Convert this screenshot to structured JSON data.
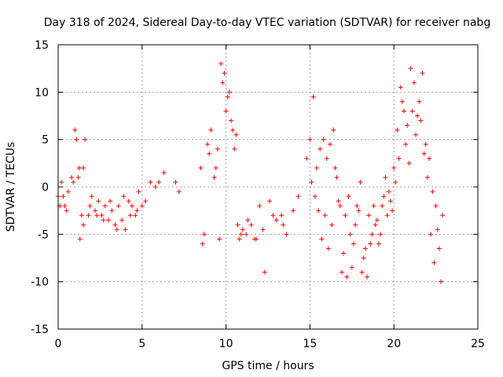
{
  "chart_data": {
    "type": "scatter",
    "title": "Day 318 of 2024, Sidereal Day-to-day VTEC variation (SDTVAR) for receiver nabg",
    "xlabel": "GPS time / hours",
    "ylabel": "SDTVAR / TECUs",
    "xlim": [
      0,
      25
    ],
    "ylim": [
      -15,
      15
    ],
    "xticks": [
      0,
      5,
      10,
      15,
      20,
      25
    ],
    "yticks": [
      -15,
      -10,
      -5,
      0,
      5,
      10,
      15
    ],
    "xtick_labels": [
      "0",
      "5",
      "10",
      "15",
      "20",
      "25"
    ],
    "ytick_labels": [
      "-15",
      "-10",
      "-5",
      "0",
      "5",
      "10",
      "15"
    ],
    "grid": true,
    "marker": "+",
    "marker_color": "#ff0000",
    "series": [
      {
        "name": "SDTVAR",
        "x": [
          0.0,
          0.2,
          0.4,
          0.6,
          0.8,
          1.0,
          1.1,
          1.2,
          1.3,
          1.4,
          1.5,
          1.6,
          1.8,
          2.0,
          2.2,
          2.4,
          2.6,
          2.8,
          3.0,
          3.2,
          3.4,
          3.6,
          3.8,
          4.0,
          4.2,
          4.4,
          4.6,
          4.8,
          5.0,
          5.2,
          5.5,
          5.8,
          6.0,
          6.3,
          7.0,
          7.2,
          8.5,
          8.7,
          8.9,
          9.1,
          9.3,
          9.5,
          9.7,
          9.8,
          10.0,
          10.2,
          10.4,
          10.6,
          10.8,
          11.0,
          11.2,
          11.5,
          11.8,
          12.0,
          12.3,
          12.6,
          13.0,
          13.3,
          13.6,
          14.0,
          14.3,
          14.8,
          15.0,
          15.2,
          15.4,
          15.6,
          15.8,
          16.0,
          16.2,
          16.4,
          16.6,
          16.8,
          17.0,
          17.2,
          17.4,
          17.6,
          17.8,
          18.0,
          18.2,
          18.4,
          18.6,
          18.8,
          19.0,
          19.2,
          19.4,
          19.6,
          19.8,
          20.0,
          20.2,
          20.4,
          20.6,
          20.8,
          21.0,
          21.2,
          21.4,
          21.6,
          21.8,
          22.0,
          22.2,
          22.4,
          22.6,
          22.8,
          0.1,
          0.3,
          0.5,
          0.9,
          1.25,
          1.5,
          1.9,
          2.3,
          2.7,
          3.1,
          3.5,
          3.9,
          4.3,
          4.7,
          8.6,
          9.0,
          9.4,
          9.6,
          9.9,
          10.1,
          10.3,
          10.5,
          10.7,
          10.9,
          11.3,
          11.7,
          12.2,
          12.8,
          13.4,
          15.1,
          15.3,
          15.5,
          15.7,
          15.9,
          16.1,
          16.3,
          16.5,
          16.7,
          16.9,
          17.1,
          17.3,
          17.5,
          17.7,
          17.9,
          18.1,
          18.3,
          18.5,
          18.7,
          18.9,
          19.1,
          19.3,
          19.5,
          19.7,
          19.9,
          20.1,
          20.3,
          20.5,
          20.7,
          20.9,
          21.1,
          21.3,
          21.5,
          21.7,
          21.9,
          22.1,
          22.3,
          22.5,
          22.7,
          22.9
        ],
        "y": [
          -1.0,
          0.5,
          -2.0,
          -0.5,
          1.0,
          6.0,
          5.0,
          1.0,
          -5.5,
          -3.0,
          2.0,
          5.0,
          -3.0,
          -1.0,
          -2.5,
          -1.5,
          -3.0,
          -2.0,
          -3.5,
          -2.5,
          -4.0,
          -2.0,
          -3.5,
          -4.5,
          -1.5,
          -2.0,
          -3.0,
          -0.5,
          -2.0,
          -1.5,
          0.5,
          0.0,
          0.5,
          1.5,
          0.5,
          -0.5,
          2.0,
          -5.0,
          4.5,
          6.0,
          1.0,
          4.0,
          13.0,
          11.0,
          8.0,
          10.0,
          6.0,
          5.5,
          -5.5,
          -4.5,
          -5.0,
          -4.0,
          -5.5,
          -2.0,
          -9.0,
          -1.5,
          -3.5,
          -3.0,
          -5.0,
          -2.5,
          -1.0,
          3.0,
          5.0,
          9.5,
          2.0,
          4.0,
          5.0,
          3.0,
          4.5,
          6.0,
          1.0,
          -2.0,
          -7.0,
          -9.5,
          -5.0,
          -6.0,
          -2.0,
          0.5,
          -7.5,
          -9.5,
          -6.0,
          -2.0,
          -3.5,
          -5.0,
          -1.0,
          -3.0,
          -1.5,
          2.0,
          6.0,
          10.5,
          8.0,
          6.5,
          12.5,
          11.0,
          7.5,
          7.0,
          3.5,
          1.0,
          -5.0,
          -8.0,
          -4.5,
          -10.0,
          -2.0,
          -1.0,
          -2.5,
          0.5,
          2.0,
          -4.0,
          -2.0,
          -3.0,
          -3.5,
          -1.5,
          -4.5,
          -1.0,
          -3.0,
          -2.5,
          -6.0,
          3.5,
          2.0,
          -5.5,
          12.0,
          9.5,
          7.0,
          4.0,
          -4.0,
          -5.0,
          -3.5,
          -5.5,
          -4.5,
          -3.0,
          -4.0,
          0.5,
          -1.0,
          -2.5,
          -5.5,
          -3.0,
          -6.5,
          -4.0,
          2.0,
          -1.5,
          -9.0,
          -3.0,
          -1.0,
          -8.5,
          -4.0,
          -2.5,
          -9.0,
          -6.5,
          -3.0,
          -5.0,
          -4.0,
          -6.0,
          -2.0,
          1.0,
          -0.5,
          -2.5,
          0.5,
          3.0,
          9.0,
          4.5,
          2.5,
          8.0,
          5.5,
          9.0,
          12.0,
          4.5,
          3.0,
          -0.5,
          -2.0,
          -6.5,
          -3.0
        ]
      }
    ]
  }
}
